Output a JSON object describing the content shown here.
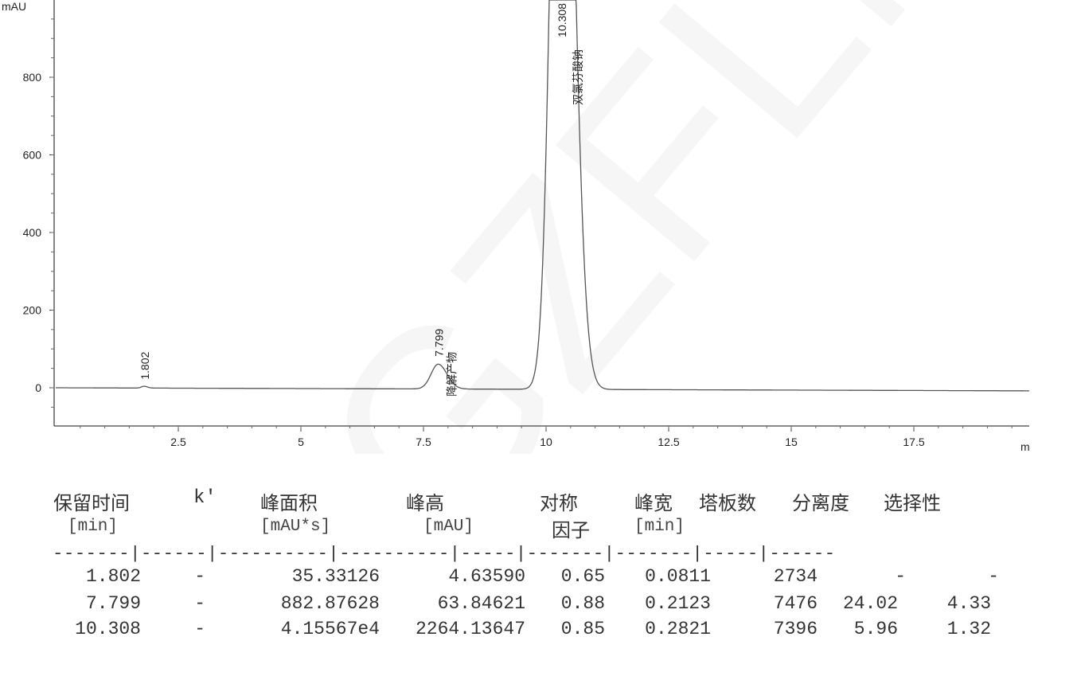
{
  "chart_data": {
    "type": "line",
    "ylabel": "mAU",
    "xlabel_partial": "m",
    "xlim": [
      0,
      19.85
    ],
    "ylim": [
      -98,
      999
    ],
    "x_ticks": [
      "2.5",
      "5",
      "7.5",
      "10",
      "12.5",
      "15",
      "17.5"
    ],
    "y_ticks": [
      "0",
      "200",
      "400",
      "600",
      "800"
    ],
    "grid": false,
    "peaks": [
      {
        "rt": 1.802,
        "label": "1.802",
        "name": "",
        "height": 4.6359,
        "width": 0.0811
      },
      {
        "rt": 7.799,
        "label": "7.799",
        "name": "降解产物",
        "height": 63.84621,
        "width": 0.2123
      },
      {
        "rt": 10.308,
        "label": "10.308",
        "name": "双氯芬酸钠",
        "height": 2264.13647,
        "width": 0.2821
      }
    ]
  },
  "watermark": "GZFLM",
  "table": {
    "headers": [
      {
        "title": "保留时间",
        "unit": "[min]"
      },
      {
        "title": "k'",
        "unit": ""
      },
      {
        "title": "峰面积",
        "unit": "[mAU*s]"
      },
      {
        "title": "峰高",
        "unit": "[mAU]"
      },
      {
        "title": "对称",
        "unit": "因子"
      },
      {
        "title": "峰宽",
        "unit": "[min]"
      },
      {
        "title": "塔板数",
        "unit": ""
      },
      {
        "title": "分离度",
        "unit": ""
      },
      {
        "title": "选择性",
        "unit": ""
      }
    ],
    "separator": "-------|------|----------|----------|-----|-------|-------|-----|------",
    "rows": [
      [
        "1.802",
        "-",
        "35.33126",
        "4.63590",
        "0.65",
        "0.0811",
        "2734",
        "-",
        "-"
      ],
      [
        "7.799",
        "-",
        "882.87628",
        "63.84621",
        "0.88",
        "0.2123",
        "7476",
        "24.02",
        "4.33"
      ],
      [
        "10.308",
        "-",
        "4.15567e4",
        "2264.13647",
        "0.85",
        "0.2821",
        "7396",
        "5.96",
        "1.32"
      ]
    ]
  }
}
